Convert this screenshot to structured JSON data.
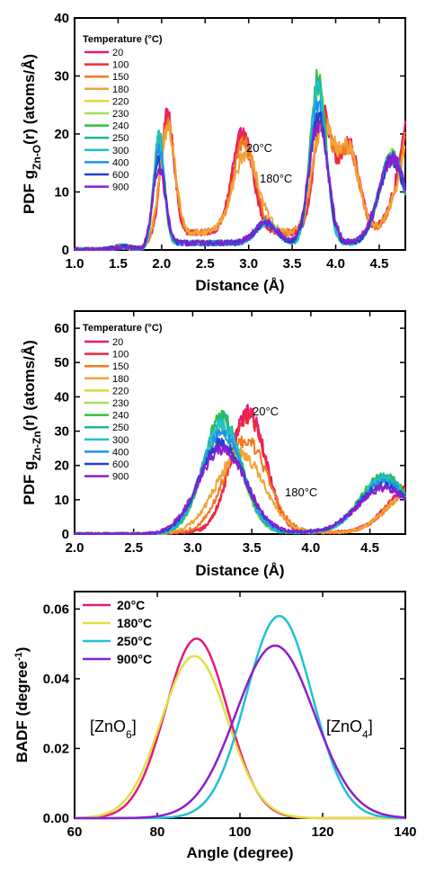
{
  "chart_data": [
    {
      "type": "line",
      "panel": "top",
      "ylabel": "PDF g_{Zn-O}(r) (atoms/Å)",
      "ylabel_main": "PDF g",
      "ylabel_sub": "Zn-O",
      "ylabel_tail": "(r) (atoms/Å)",
      "xlabel": "Distance (Å)",
      "xlim": [
        1.0,
        4.8
      ],
      "ylim": [
        0,
        40
      ],
      "xticks": [
        1.0,
        1.5,
        2.0,
        2.5,
        3.0,
        3.5,
        4.0,
        4.5
      ],
      "xtick_labels": [
        "1.0",
        "1.5",
        "2.0",
        "2.5",
        "3.0",
        "3.5",
        "4.0",
        "4.5"
      ],
      "yticks": [
        0,
        10,
        20,
        30,
        40
      ],
      "ytick_labels": [
        "0",
        "10",
        "20",
        "30",
        "40"
      ],
      "legend_title": "Temperature (°C)",
      "legend_position": "top-left",
      "annotations": [
        {
          "text": "20°C",
          "x": 2.9,
          "y": 21.3
        },
        {
          "text": "180°C",
          "x": 3.05,
          "y": 14.3
        }
      ],
      "series": [
        {
          "name": "20",
          "color": "#e6197a",
          "group": "low",
          "peaks": [
            [
              2.07,
              20.5,
              0.075
            ],
            [
              2.93,
              17.0,
              0.12
            ],
            [
              3.85,
              20.0,
              0.1
            ],
            [
              4.15,
              15.0,
              0.12
            ]
          ],
          "tail": 33
        },
        {
          "name": "100",
          "color": "#f0283c",
          "group": "low",
          "peaks": [
            [
              2.07,
              20.0,
              0.075
            ],
            [
              2.93,
              16.5,
              0.12
            ],
            [
              3.85,
              19.5,
              0.1
            ],
            [
              4.15,
              15.0,
              0.12
            ]
          ],
          "tail": 32
        },
        {
          "name": "150",
          "color": "#f07a1e",
          "group": "low",
          "peaks": [
            [
              2.07,
              19.0,
              0.08
            ],
            [
              2.95,
              15.5,
              0.13
            ],
            [
              3.85,
              19.0,
              0.11
            ],
            [
              4.15,
              14.5,
              0.12
            ]
          ],
          "tail": 31
        },
        {
          "name": "180",
          "color": "#f2a33a",
          "group": "low",
          "peaks": [
            [
              2.07,
              18.0,
              0.085
            ],
            [
              2.97,
              13.5,
              0.15
            ],
            [
              3.85,
              18.5,
              0.12
            ],
            [
              4.15,
              14.0,
              0.12
            ]
          ],
          "tail": 30
        },
        {
          "name": "220",
          "color": "#d9dc3a",
          "group": "high",
          "peaks": [
            [
              1.97,
              17.0,
              0.06
            ],
            [
              3.2,
              3.5,
              0.12
            ],
            [
              3.8,
              27.0,
              0.09
            ],
            [
              4.65,
              15.0,
              0.15
            ]
          ],
          "tail": 13
        },
        {
          "name": "230",
          "color": "#a6e05a",
          "group": "high",
          "peaks": [
            [
              1.97,
              18.0,
              0.06
            ],
            [
              3.2,
              3.5,
              0.12
            ],
            [
              3.8,
              28.0,
              0.09
            ],
            [
              4.65,
              15.0,
              0.15
            ]
          ],
          "tail": 13
        },
        {
          "name": "240",
          "color": "#2ec43a",
          "group": "high",
          "peaks": [
            [
              1.97,
              19.0,
              0.06
            ],
            [
              3.2,
              3.5,
              0.12
            ],
            [
              3.8,
              28.5,
              0.09
            ],
            [
              4.65,
              15.0,
              0.15
            ]
          ],
          "tail": 13
        },
        {
          "name": "250",
          "color": "#22b39a",
          "group": "high",
          "peaks": [
            [
              1.97,
              18.5,
              0.06
            ],
            [
              3.2,
              3.5,
              0.12
            ],
            [
              3.8,
              27.5,
              0.09
            ],
            [
              4.65,
              15.0,
              0.15
            ]
          ],
          "tail": 13
        },
        {
          "name": "300",
          "color": "#1fc2d0",
          "group": "high",
          "peaks": [
            [
              1.97,
              18.0,
              0.06
            ],
            [
              3.2,
              3.5,
              0.12
            ],
            [
              3.8,
              26.5,
              0.09
            ],
            [
              4.65,
              15.0,
              0.15
            ]
          ],
          "tail": 13
        },
        {
          "name": "400",
          "color": "#1e90f0",
          "group": "high",
          "peaks": [
            [
              1.97,
              16.0,
              0.065
            ],
            [
              3.2,
              3.5,
              0.12
            ],
            [
              3.8,
              24.0,
              0.1
            ],
            [
              4.65,
              15.0,
              0.15
            ]
          ],
          "tail": 13
        },
        {
          "name": "600",
          "color": "#2240c8",
          "group": "high",
          "peaks": [
            [
              1.97,
              14.0,
              0.07
            ],
            [
              3.2,
              3.5,
              0.12
            ],
            [
              3.8,
              22.0,
              0.1
            ],
            [
              4.65,
              14.5,
              0.15
            ]
          ],
          "tail": 14
        },
        {
          "name": "900",
          "color": "#8b1ecf",
          "group": "high",
          "peaks": [
            [
              1.97,
              12.5,
              0.075
            ],
            [
              3.2,
              3.5,
              0.13
            ],
            [
              3.8,
              20.5,
              0.11
            ],
            [
              4.65,
              14.5,
              0.16
            ]
          ],
          "tail": 14
        }
      ]
    },
    {
      "type": "line",
      "panel": "middle",
      "ylabel": "PDF g_{Zn-Zn}(r) (atoms/Å)",
      "ylabel_main": "PDF g",
      "ylabel_sub": "Zn-Zn",
      "ylabel_tail": "(r) (atoms/Å)",
      "xlabel": "Distance (Å)",
      "xlim": [
        2.0,
        4.8
      ],
      "ylim": [
        0,
        65
      ],
      "xticks": [
        2.0,
        2.5,
        3.0,
        3.5,
        4.0,
        4.5
      ],
      "xtick_labels": [
        "2.0",
        "2.5",
        "3.0",
        "3.5",
        "4.0",
        "4.5"
      ],
      "yticks": [
        0,
        10,
        20,
        30,
        40,
        50,
        60
      ],
      "ytick_labels": [
        "0",
        "10",
        "20",
        "30",
        "40",
        "50",
        "60"
      ],
      "legend_title": "Temperature (°C)",
      "legend_position": "top-left",
      "annotations": [
        {
          "text": "20°C",
          "x": 3.55,
          "y": 35.5
        },
        {
          "text": "180°C",
          "x": 3.62,
          "y": 10.5
        }
      ],
      "series": [
        {
          "name": "20",
          "color": "#e6197a",
          "group": "low",
          "peaks": [
            [
              3.47,
              35.0,
              0.15
            ],
            [
              4.85,
              13.0,
              0.2
            ]
          ]
        },
        {
          "name": "100",
          "color": "#f0283c",
          "group": "low",
          "peaks": [
            [
              3.47,
              34.0,
              0.15
            ],
            [
              4.85,
              13.0,
              0.2
            ]
          ]
        },
        {
          "name": "150",
          "color": "#f07a1e",
          "group": "low",
          "peaks": [
            [
              3.45,
              27.0,
              0.18
            ],
            [
              4.85,
              12.0,
              0.2
            ]
          ]
        },
        {
          "name": "180",
          "color": "#f2a33a",
          "group": "low",
          "peaks": [
            [
              3.4,
              23.0,
              0.2
            ],
            [
              4.85,
              12.0,
              0.2
            ]
          ]
        },
        {
          "name": "220",
          "color": "#d9dc3a",
          "group": "high",
          "peaks": [
            [
              3.25,
              30.0,
              0.17
            ],
            [
              4.62,
              15.0,
              0.2
            ]
          ]
        },
        {
          "name": "230",
          "color": "#a6e05a",
          "group": "high",
          "peaks": [
            [
              3.25,
              32.0,
              0.16
            ],
            [
              4.62,
              16.0,
              0.2
            ]
          ]
        },
        {
          "name": "240",
          "color": "#2ec43a",
          "group": "high",
          "peaks": [
            [
              3.25,
              33.5,
              0.16
            ],
            [
              4.62,
              16.5,
              0.2
            ]
          ]
        },
        {
          "name": "250",
          "color": "#22b39a",
          "group": "high",
          "peaks": [
            [
              3.25,
              33.0,
              0.16
            ],
            [
              4.62,
              16.0,
              0.2
            ]
          ]
        },
        {
          "name": "300",
          "color": "#1fc2d0",
          "group": "high",
          "peaks": [
            [
              3.25,
              31.0,
              0.17
            ],
            [
              4.62,
              15.5,
              0.2
            ]
          ]
        },
        {
          "name": "400",
          "color": "#1e90f0",
          "group": "high",
          "peaks": [
            [
              3.25,
              28.5,
              0.18
            ],
            [
              4.62,
              14.5,
              0.21
            ]
          ]
        },
        {
          "name": "600",
          "color": "#2240c8",
          "group": "high",
          "peaks": [
            [
              3.25,
              26.0,
              0.19
            ],
            [
              4.62,
              13.5,
              0.22
            ]
          ]
        },
        {
          "name": "900",
          "color": "#8b1ecf",
          "group": "high",
          "peaks": [
            [
              3.25,
              24.5,
              0.2
            ],
            [
              4.62,
              13.0,
              0.22
            ]
          ]
        }
      ]
    },
    {
      "type": "line",
      "panel": "bottom",
      "ylabel": "BADF (degree^-1)",
      "ylabel_main": "BADF (degree",
      "ylabel_sup": "-1",
      "ylabel_tail": ")",
      "xlabel": "Angle (degree)",
      "xlim": [
        60,
        140
      ],
      "ylim": [
        0,
        0.065
      ],
      "xticks": [
        60,
        80,
        100,
        120,
        140
      ],
      "xtick_labels": [
        "60",
        "80",
        "100",
        "120",
        "140"
      ],
      "yticks": [
        0,
        0.02,
        0.04,
        0.06
      ],
      "ytick_labels": [
        "0.00",
        "0.02",
        "0.04",
        "0.06"
      ],
      "legend_position": "top-left",
      "annotations": [
        {
          "text": "[ZnO",
          "sub": "6",
          "tail": "]",
          "x": 64,
          "y": 0.0245
        },
        {
          "text": "[ZnO",
          "sub": "4",
          "tail": "]",
          "x": 126,
          "y": 0.0245
        }
      ],
      "series": [
        {
          "name": "20°C",
          "color": "#e6197a",
          "peak_x": 89.5,
          "peak_y": 0.0515,
          "sigma": 7.5
        },
        {
          "name": "180°C",
          "color": "#e0e040",
          "peak_x": 89.0,
          "peak_y": 0.0465,
          "sigma": 8.0
        },
        {
          "name": "250°C",
          "color": "#1fc2d0",
          "peak_x": 109.5,
          "peak_y": 0.058,
          "sigma": 8.0
        },
        {
          "name": "900°C",
          "color": "#8b1ecf",
          "peak_x": 108.5,
          "peak_y": 0.0495,
          "sigma": 9.5
        }
      ]
    }
  ]
}
